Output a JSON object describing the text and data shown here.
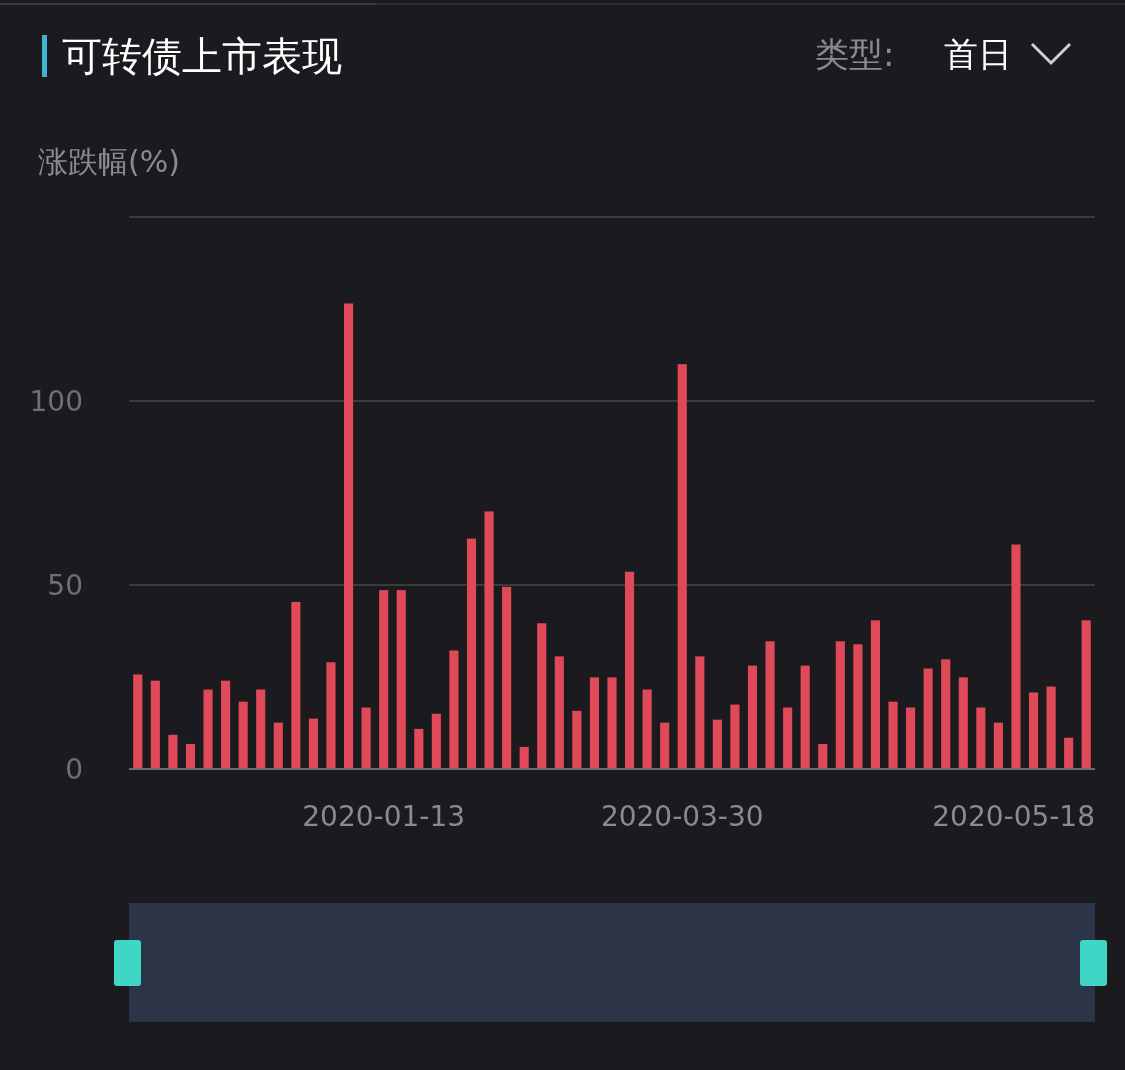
{
  "chart_data": {
    "type": "bar",
    "title": "可转债上市表现",
    "ylabel": "涨跌幅(%)",
    "annotations": [
      "类型:",
      "首日"
    ],
    "categories": [
      null,
      null,
      null,
      null,
      null,
      null,
      null,
      null,
      null,
      null,
      null,
      null,
      null,
      null,
      "2020-01-13",
      null,
      null,
      null,
      null,
      null,
      null,
      null,
      null,
      null,
      null,
      null,
      null,
      null,
      null,
      null,
      null,
      "2020-03-30",
      null,
      null,
      null,
      null,
      null,
      null,
      null,
      null,
      null,
      null,
      null,
      null,
      null,
      null,
      null,
      null,
      null,
      null,
      "2020-05-18",
      null,
      null,
      null,
      null
    ],
    "values": [
      25.7,
      24,
      9.3,
      6.8,
      21.6,
      24,
      18.3,
      21.6,
      12.6,
      45.4,
      13.7,
      29,
      126.5,
      16.7,
      48.6,
      48.6,
      10.9,
      15,
      32.2,
      62.6,
      70,
      49.5,
      6,
      39.6,
      30.6,
      15.8,
      24.9,
      24.9,
      53.6,
      21.6,
      12.6,
      110,
      30.6,
      13.4,
      17.5,
      28.1,
      34.7,
      16.7,
      28.1,
      6.8,
      34.7,
      33.9,
      40.4,
      18.3,
      16.7,
      27.3,
      29.8,
      24.9,
      16.7,
      12.6,
      61,
      20.8,
      22.4,
      8.5,
      40.4
    ],
    "color": "#e04a58",
    "ylim": [
      0,
      150
    ],
    "yticks": [
      0,
      50,
      100,
      {
        "value": 150,
        "label": null
      }
    ],
    "grid": "y"
  }
}
